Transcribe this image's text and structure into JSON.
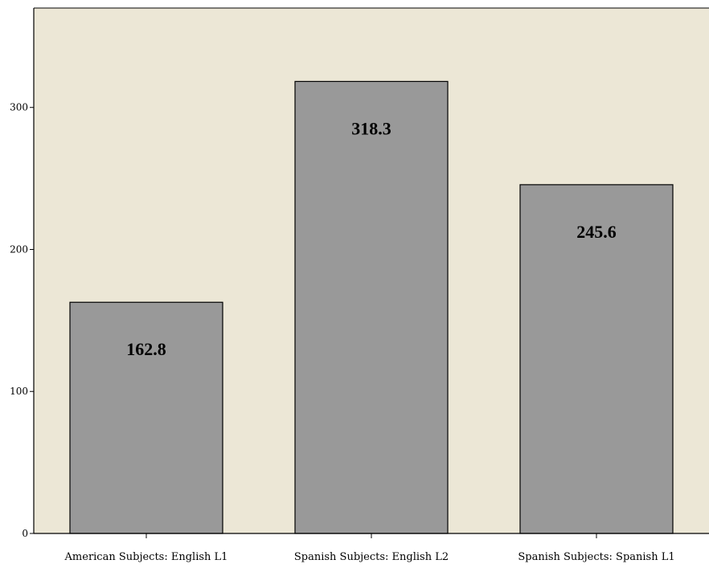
{
  "chart_data": {
    "type": "bar",
    "title": "",
    "xlabel": "",
    "ylabel": "",
    "categories": [
      "American Subjects: English L1",
      "Spanish Subjects: English L2",
      "Spanish Subjects: Spanish L1"
    ],
    "values": [
      162.8,
      318.3,
      245.6
    ],
    "value_labels": [
      "162.8",
      "318.3",
      "245.6"
    ],
    "ylim": [
      0,
      370
    ],
    "yticks": [
      0,
      100,
      200,
      300
    ],
    "ytick_labels": [
      "0",
      "100",
      "200",
      "300"
    ],
    "grid": false,
    "legend": "none",
    "colors": {
      "plot_background": "#ece7d6",
      "bar_fill": "#999999",
      "bar_stroke": "#000000",
      "axis": "#000000"
    }
  }
}
